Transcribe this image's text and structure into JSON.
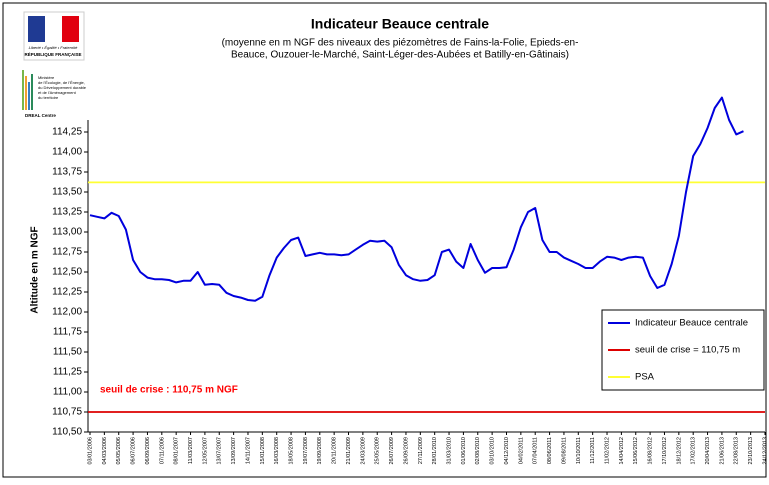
{
  "logo": {
    "motto": "Liberté • Égalité • Fraternité",
    "republic": "RÉPUBLIQUE FRANÇAISE",
    "ministry": [
      "Ministère",
      "de l'Écologie, de l'Énergie,",
      "du Développement durable",
      "et de l'Aménagement",
      "du territoire"
    ],
    "dreal": "DREAL Centre"
  },
  "chart_data": {
    "type": "line",
    "title": "Indicateur Beauce centrale",
    "subtitle": [
      "(moyenne en m NGF des niveaux des piézomètres de Fains-la-Folie, Epieds-en-",
      "Beauce, Ouzouer-le-Marché, Saint-Léger-des-Aubées et Batilly-en-Gâtinais)"
    ],
    "y_label": "Altitude en m NGF",
    "annotation": {
      "text": "seuil de crise : 110,75 m NGF",
      "color": "#ff0000"
    },
    "categories": [
      "03/01/2006",
      null,
      "04/03/2006",
      null,
      "05/05/2006",
      null,
      "06/07/2006",
      null,
      "06/09/2006",
      null,
      "07/11/2006",
      null,
      "08/01/2007",
      null,
      "11/03/2007",
      null,
      "12/05/2007",
      null,
      "13/07/2007",
      null,
      "13/09/2007",
      null,
      "14/11/2007",
      null,
      "15/01/2008",
      null,
      "16/03/2008",
      null,
      "18/05/2008",
      null,
      "19/07/2008",
      null,
      "19/09/2008",
      null,
      "20/11/2008",
      null,
      "21/01/2009",
      null,
      "24/03/2009",
      null,
      "25/05/2009",
      null,
      "26/07/2009",
      null,
      "26/09/2009",
      null,
      "27/11/2009",
      null,
      "28/01/2010",
      null,
      "31/03/2010",
      null,
      "01/06/2010",
      null,
      "02/08/2010",
      null,
      "03/10/2010",
      null,
      "04/12/2010",
      null,
      "04/02/2011",
      null,
      "07/04/2011",
      null,
      "08/06/2011",
      null,
      "09/08/2011",
      null,
      "10/10/2011",
      null,
      "11/12/2011",
      null,
      "11/02/2012",
      null,
      "14/04/2012",
      null,
      "15/06/2012",
      null,
      "16/08/2012",
      null,
      "17/10/2012",
      null,
      "18/12/2012",
      null,
      "17/02/2013",
      null,
      "20/04/2013",
      null,
      "21/06/2013",
      null,
      "22/08/2013",
      null,
      "23/10/2013",
      null,
      "24/12/2013",
      null
    ],
    "series": [
      {
        "name": "Indicateur Beauce centrale",
        "color": "#0000dd",
        "values": [
          113.21,
          113.19,
          113.17,
          113.24,
          113.2,
          113.03,
          112.65,
          112.5,
          112.43,
          112.41,
          112.41,
          112.4,
          112.37,
          112.39,
          112.39,
          112.5,
          112.34,
          112.35,
          112.34,
          112.24,
          112.2,
          112.18,
          112.15,
          112.14,
          112.19,
          112.46,
          112.68,
          112.8,
          112.9,
          112.93,
          112.7,
          112.72,
          112.74,
          112.72,
          112.72,
          112.71,
          112.72,
          112.78,
          112.84,
          112.89,
          112.88,
          112.89,
          112.81,
          112.59,
          112.46,
          112.41,
          112.39,
          112.4,
          112.46,
          112.75,
          112.78,
          112.63,
          112.55,
          112.85,
          112.65,
          112.49,
          112.55,
          112.55,
          112.56,
          112.78,
          113.06,
          113.25,
          113.3,
          112.9,
          112.75,
          112.75,
          112.68,
          112.64,
          112.6,
          112.55,
          112.55,
          112.63,
          112.69,
          112.68,
          112.65,
          112.68,
          112.69,
          112.68,
          112.45,
          112.3,
          112.34,
          112.6,
          112.95,
          113.5,
          113.95,
          114.1,
          114.3,
          114.55,
          114.68,
          114.4,
          114.22,
          114.26,
          null,
          null,
          null,
          null
        ]
      }
    ],
    "thresholds": [
      {
        "name": "seuil de crise = 110,75 m",
        "value": 110.75,
        "color": "#dd0000"
      },
      {
        "name": "PSA",
        "value": 113.62,
        "color": "#ffff33"
      }
    ],
    "ylim": [
      110.5,
      115.8
    ],
    "yticks": [
      {
        "value": 110.5,
        "label": "110,50"
      },
      {
        "value": 110.75,
        "label": "110,75"
      },
      {
        "value": 111,
        "label": "111,00"
      },
      {
        "value": 111.25,
        "label": "111,25"
      },
      {
        "value": 111.5,
        "label": "111,50"
      },
      {
        "value": 111.75,
        "label": "111,75"
      },
      {
        "value": 112,
        "label": "112,00"
      },
      {
        "value": 112.25,
        "label": "112,25"
      },
      {
        "value": 112.5,
        "label": "112,50"
      },
      {
        "value": 112.75,
        "label": "112,75"
      },
      {
        "value": 113,
        "label": "113,00"
      },
      {
        "value": 113.25,
        "label": "113,25"
      },
      {
        "value": 113.5,
        "label": "113,50"
      },
      {
        "value": 113.75,
        "label": "113,75"
      },
      {
        "value": 114,
        "label": "114,00"
      },
      {
        "value": 114.25,
        "label": "114,25"
      }
    ],
    "grid": false,
    "legend": "lower right"
  }
}
